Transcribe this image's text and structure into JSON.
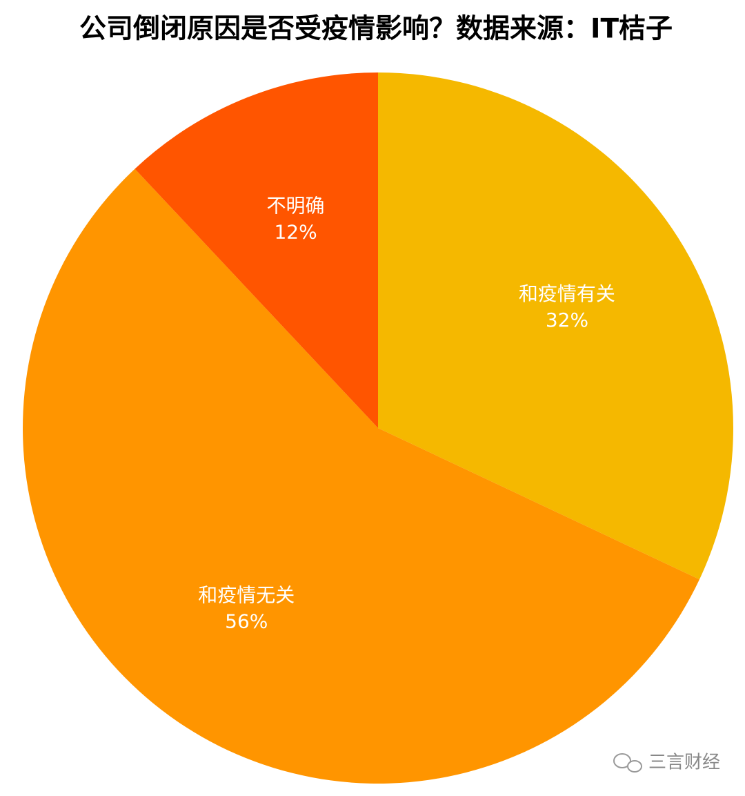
{
  "chart_data": {
    "type": "pie",
    "title": "公司倒闭原因是否受疫情影响？数据来源：IT桔子",
    "categories": [
      "和疫情有关",
      "和疫情无关",
      "不明确"
    ],
    "values": [
      32,
      56,
      12
    ],
    "value_labels": [
      "32%",
      "56%",
      "12%"
    ],
    "colors": [
      "#f5b800",
      "#ff9500",
      "#ff5500"
    ]
  },
  "watermark": "三言财经"
}
